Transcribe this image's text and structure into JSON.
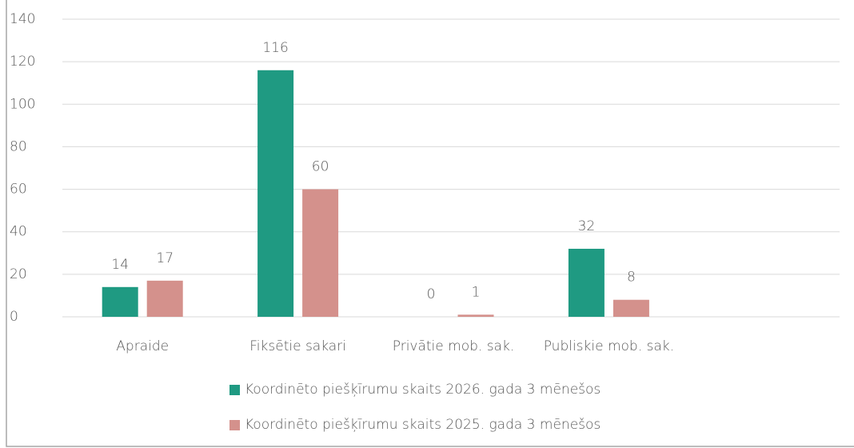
{
  "chart_data": {
    "type": "bar",
    "categories": [
      "Apraide",
      "Fiksētie sakari",
      "Privātie mob. sak.",
      "Publiskie mob. sak.",
      null
    ],
    "series": [
      {
        "name": "Koordinēto piešķīrumu skaits 2026. gada 3 mēnešos",
        "color": "#1f9a82",
        "values": [
          14,
          116,
          0,
          32,
          null
        ]
      },
      {
        "name": "Koordinēto piešķīrumu skaits 2025. gada 3 mēnešos",
        "color": "#d4918c",
        "values": [
          17,
          60,
          1,
          8,
          null
        ]
      }
    ],
    "ylim": [
      0,
      140
    ],
    "yticks": [
      0,
      20,
      40,
      60,
      80,
      100,
      120,
      140
    ],
    "grid": true,
    "legend": "bottom"
  }
}
